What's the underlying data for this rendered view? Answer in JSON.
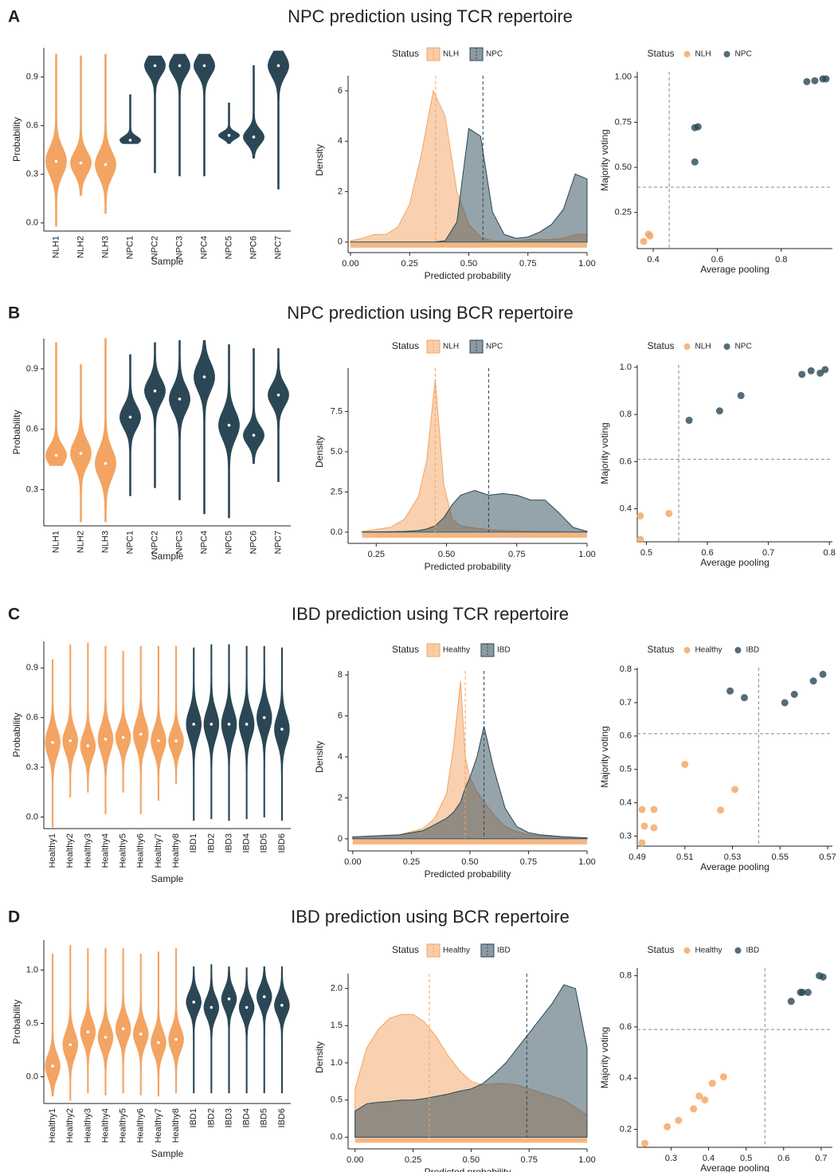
{
  "panels": [
    {
      "label": "A",
      "title": "NPC prediction using TCR repertoire"
    },
    {
      "label": "B",
      "title": "NPC prediction using BCR repertoire"
    },
    {
      "label": "C",
      "title": "IBD prediction using TCR repertoire"
    },
    {
      "label": "D",
      "title": "IBD prediction using BCR repertoire"
    }
  ],
  "chart_data": [
    {
      "type": "violin",
      "xlabel": "Sample",
      "ylabel": "Probability",
      "categories": [
        "NLH1",
        "NLH2",
        "NLH3",
        "NPC1",
        "NPC2",
        "NPC3",
        "NPC4",
        "NPC5",
        "NPC6",
        "NPC7"
      ],
      "colors": [
        "#f3a462",
        "#f3a462",
        "#f3a462",
        "#2b4756",
        "#2b4756",
        "#2b4756",
        "#2b4756",
        "#2b4756",
        "#2b4756",
        "#2b4756"
      ],
      "mins": [
        -0.02,
        0.17,
        0.06,
        0.49,
        0.31,
        0.29,
        0.29,
        0.49,
        0.4,
        0.21
      ],
      "medians": [
        0.38,
        0.37,
        0.36,
        0.51,
        0.97,
        0.97,
        0.97,
        0.54,
        0.53,
        0.97
      ],
      "maxs": [
        1.04,
        1.03,
        1.04,
        0.79,
        1.03,
        1.04,
        1.04,
        0.74,
        0.97,
        1.06
      ],
      "ylim": [
        -0.05,
        1.08
      ],
      "yticks": [
        {
          "value": 0,
          "label": "0.0"
        },
        0.3,
        0.6,
        0.9
      ]
    },
    {
      "type": "density",
      "xlabel": "Predicted probability",
      "ylabel": "Density",
      "legend_title": "Status",
      "x": [
        0,
        0.05,
        0.1,
        0.15,
        0.2,
        0.25,
        0.3,
        0.35,
        0.4,
        0.45,
        0.5,
        0.55,
        0.6,
        0.65,
        0.7,
        0.75,
        0.8,
        0.85,
        0.9,
        0.95,
        1
      ],
      "series": [
        {
          "name": "NLH",
          "color": "#f3a462",
          "mean": 0.36,
          "values": [
            0.05,
            0.15,
            0.3,
            0.3,
            0.6,
            1.5,
            3.5,
            6,
            5,
            2,
            0.7,
            0.2,
            0.05,
            0.05,
            0.05,
            0.1,
            0.1,
            0.1,
            0.15,
            0.3,
            0.3
          ]
        },
        {
          "name": "NPC",
          "color": "#2b4756",
          "mean": 0.56,
          "values": [
            0,
            0,
            0,
            0,
            0,
            0,
            0,
            0,
            0.05,
            0.8,
            4.5,
            4.2,
            1.2,
            0.3,
            0.15,
            0.2,
            0.4,
            0.7,
            1.3,
            2.7,
            2.5
          ]
        }
      ],
      "xlim": [
        -0.01,
        1
      ],
      "xticks": [
        {
          "value": 0,
          "label": "0.00"
        },
        {
          "value": 0.25,
          "label": "0.25"
        },
        {
          "value": 0.5,
          "label": "0.50"
        },
        {
          "value": 0.75,
          "label": "0.75"
        },
        {
          "value": 1,
          "label": "1.00"
        }
      ],
      "ylim": [
        -0.1,
        6.6
      ],
      "yticks": [
        0,
        2,
        4,
        6
      ]
    },
    {
      "type": "scatter",
      "xlabel": "Average pooling",
      "ylabel": "Majority voting",
      "legend_title": "Status",
      "series": [
        {
          "name": "NLH",
          "color": "#f3a462",
          "x": [
            0.37,
            0.385,
            0.39
          ],
          "y": [
            0.09,
            0.13,
            0.12
          ]
        },
        {
          "name": "NPC",
          "color": "#2b4756",
          "x": [
            0.53,
            0.53,
            0.54,
            0.88,
            0.905,
            0.93,
            0.94
          ],
          "y": [
            0.53,
            0.72,
            0.725,
            0.975,
            0.98,
            0.99,
            0.99
          ]
        }
      ],
      "vline": 0.45,
      "hline": 0.39,
      "xlim": [
        0.35,
        0.96
      ],
      "xticks": [
        0.4,
        0.6,
        0.8
      ],
      "ylim": [
        0.05,
        1.03
      ],
      "yticks": [
        0.25,
        {
          "value": 0.5,
          "label": "0.50"
        },
        0.75,
        {
          "value": 1,
          "label": "1.00"
        }
      ]
    },
    {
      "type": "violin",
      "xlabel": "Sample",
      "ylabel": "Probability",
      "categories": [
        "NLH1",
        "NLH2",
        "NLH3",
        "NPC1",
        "NPC2",
        "NPC3",
        "NPC4",
        "NPC5",
        "NPC6",
        "NPC7"
      ],
      "colors": [
        "#f3a462",
        "#f3a462",
        "#f3a462",
        "#2b4756",
        "#2b4756",
        "#2b4756",
        "#2b4756",
        "#2b4756",
        "#2b4756",
        "#2b4756"
      ],
      "mins": [
        0.42,
        0.14,
        0.14,
        0.27,
        0.31,
        0.25,
        0.18,
        0.16,
        0.43,
        0.34
      ],
      "medians": [
        0.47,
        0.48,
        0.43,
        0.66,
        0.79,
        0.75,
        0.86,
        0.62,
        0.57,
        0.77
      ],
      "maxs": [
        1.03,
        0.92,
        1.05,
        0.97,
        1.03,
        1.04,
        1.04,
        1.02,
        1,
        1
      ],
      "ylim": [
        0.12,
        1.05
      ],
      "yticks": [
        0.3,
        0.6,
        0.9
      ]
    },
    {
      "type": "density",
      "xlabel": "Predicted probability",
      "ylabel": "Density",
      "legend_title": "Status",
      "x": [
        0.2,
        0.3,
        0.35,
        0.4,
        0.43,
        0.46,
        0.49,
        0.52,
        0.55,
        0.6,
        0.65,
        0.7,
        0.75,
        0.8,
        0.85,
        0.9,
        0.95,
        1
      ],
      "series": [
        {
          "name": "NLH",
          "color": "#f3a462",
          "mean": 0.46,
          "values": [
            0.05,
            0.3,
            0.8,
            2.2,
            4.5,
            9.5,
            3,
            0.8,
            0.4,
            0.25,
            0.15,
            0.1,
            0.08,
            0.05,
            0.05,
            0.04,
            0.03,
            0.02
          ]
        },
        {
          "name": "NPC",
          "color": "#2b4756",
          "mean": 0.65,
          "values": [
            0.02,
            0.03,
            0.05,
            0.1,
            0.2,
            0.4,
            0.9,
            1.7,
            2.3,
            2.6,
            2.3,
            2.4,
            2.3,
            2,
            2,
            1.2,
            0.3,
            0.05
          ]
        }
      ],
      "xlim": [
        0.15,
        1
      ],
      "xticks": [
        {
          "value": 0.25,
          "label": "0.25"
        },
        {
          "value": 0.5,
          "label": "0.50"
        },
        {
          "value": 0.75,
          "label": "0.75"
        },
        {
          "value": 1,
          "label": "1.00"
        }
      ],
      "ylim": [
        -0.2,
        10.2
      ],
      "yticks": [
        {
          "value": 0,
          "label": "0.0"
        },
        2.5,
        {
          "value": 5,
          "label": "5.0"
        },
        7.5
      ]
    },
    {
      "type": "scatter",
      "xlabel": "Average pooling",
      "ylabel": "Majority voting",
      "legend_title": "Status",
      "series": [
        {
          "name": "NLH",
          "color": "#f3a462",
          "x": [
            0.49,
            0.49,
            0.537
          ],
          "y": [
            0.37,
            0.27,
            0.38
          ]
        },
        {
          "name": "NPC",
          "color": "#2b4756",
          "x": [
            0.57,
            0.62,
            0.655,
            0.755,
            0.77,
            0.785,
            0.793
          ],
          "y": [
            0.775,
            0.815,
            0.88,
            0.97,
            0.985,
            0.975,
            0.99
          ]
        }
      ],
      "vline": 0.553,
      "hline": 0.61,
      "xlim": [
        0.485,
        0.805
      ],
      "xticks": [
        0.5,
        0.6,
        0.7,
        0.8
      ],
      "ylim": [
        0.26,
        1.01
      ],
      "yticks": [
        0.4,
        0.6,
        0.8,
        {
          "value": 1,
          "label": "1.0"
        }
      ]
    },
    {
      "type": "violin",
      "xlabel": "Sample",
      "ylabel": "Probability",
      "categories": [
        "Healthy1",
        "Healthy2",
        "Healthy3",
        "Healthy4",
        "Healthy5",
        "Healthy6",
        "Healthy7",
        "Healthy8",
        "IBD1",
        "IBD2",
        "IBD3",
        "IBD4",
        "IBD5",
        "IBD6"
      ],
      "colors": [
        "#f3a462",
        "#f3a462",
        "#f3a462",
        "#f3a462",
        "#f3a462",
        "#f3a462",
        "#f3a462",
        "#f3a462",
        "#2b4756",
        "#2b4756",
        "#2b4756",
        "#2b4756",
        "#2b4756",
        "#2b4756"
      ],
      "mins": [
        -0.06,
        0.12,
        0.15,
        0.02,
        0.15,
        0.02,
        0.1,
        0.2,
        -0.02,
        -0.01,
        -0.02,
        -0.01,
        0,
        -0.02
      ],
      "medians": [
        0.45,
        0.46,
        0.43,
        0.47,
        0.48,
        0.5,
        0.46,
        0.46,
        0.56,
        0.56,
        0.56,
        0.56,
        0.6,
        0.53
      ],
      "maxs": [
        0.95,
        1.04,
        1.05,
        1.03,
        1,
        1.03,
        1.03,
        1.03,
        1.02,
        1.04,
        1.04,
        1.03,
        1.03,
        1.02
      ],
      "ylim": [
        -0.07,
        1.06
      ],
      "yticks": [
        {
          "value": 0,
          "label": "0.0"
        },
        0.3,
        0.6,
        0.9
      ]
    },
    {
      "type": "density",
      "xlabel": "Predicted probability",
      "ylabel": "Density",
      "legend_title": "Status",
      "x": [
        0,
        0.2,
        0.3,
        0.35,
        0.4,
        0.43,
        0.46,
        0.48,
        0.5,
        0.53,
        0.56,
        0.6,
        0.65,
        0.7,
        0.75,
        0.8,
        0.9,
        1
      ],
      "series": [
        {
          "name": "Healthy",
          "color": "#f3a462",
          "mean": 0.48,
          "values": [
            0.1,
            0.2,
            0.5,
            1,
            2.2,
            4.5,
            7.7,
            4,
            3,
            2.3,
            1.8,
            1.2,
            0.6,
            0.35,
            0.2,
            0.15,
            0.1,
            0.05
          ]
        },
        {
          "name": "IBD",
          "color": "#2b4756",
          "mean": 0.56,
          "values": [
            0.1,
            0.2,
            0.4,
            0.7,
            1,
            1.3,
            1.8,
            2.5,
            3,
            4,
            5.5,
            3.5,
            1.5,
            0.6,
            0.3,
            0.2,
            0.1,
            0.05
          ]
        }
      ],
      "xlim": [
        -0.02,
        1
      ],
      "xticks": [
        {
          "value": 0,
          "label": "0.00"
        },
        {
          "value": 0.25,
          "label": "0.25"
        },
        {
          "value": 0.5,
          "label": "0.50"
        },
        {
          "value": 0.75,
          "label": "0.75"
        },
        {
          "value": 1,
          "label": "1.00"
        }
      ],
      "ylim": [
        -0.2,
        8.2
      ],
      "yticks": [
        0,
        2,
        4,
        6,
        8
      ]
    },
    {
      "type": "scatter",
      "xlabel": "Average pooling",
      "ylabel": "Majority voting",
      "legend_title": "Status",
      "series": [
        {
          "name": "Healthy",
          "color": "#f3a462",
          "x": [
            0.492,
            0.492,
            0.493,
            0.497,
            0.497,
            0.51,
            0.525,
            0.531
          ],
          "y": [
            0.38,
            0.28,
            0.33,
            0.38,
            0.325,
            0.515,
            0.378,
            0.44
          ]
        },
        {
          "name": "IBD",
          "color": "#2b4756",
          "x": [
            0.529,
            0.535,
            0.552,
            0.556,
            0.564,
            0.568
          ],
          "y": [
            0.735,
            0.715,
            0.7,
            0.725,
            0.765,
            0.785
          ]
        }
      ],
      "vline": 0.541,
      "hline": 0.607,
      "xlim": [
        0.49,
        0.572
      ],
      "xticks": [
        0.49,
        0.51,
        0.53,
        0.55,
        0.57
      ],
      "ylim": [
        0.27,
        0.805
      ],
      "yticks": [
        0.3,
        0.4,
        0.5,
        0.6,
        0.7,
        0.8
      ]
    },
    {
      "type": "violin",
      "xlabel": "Sample",
      "ylabel": "Probability",
      "categories": [
        "Healthy1",
        "Healthy2",
        "Healthy3",
        "Healthy4",
        "Healthy5",
        "Healthy6",
        "Healthy7",
        "Healthy8",
        "IBD1",
        "IBD2",
        "IBD3",
        "IBD4",
        "IBD5",
        "IBD6"
      ],
      "colors": [
        "#f3a462",
        "#f3a462",
        "#f3a462",
        "#f3a462",
        "#f3a462",
        "#f3a462",
        "#f3a462",
        "#f3a462",
        "#2b4756",
        "#2b4756",
        "#2b4756",
        "#2b4756",
        "#2b4756",
        "#2b4756"
      ],
      "mins": [
        -0.18,
        -0.22,
        -0.15,
        -0.17,
        -0.15,
        -0.17,
        -0.18,
        -0.15,
        -0.15,
        -0.15,
        -0.15,
        -0.15,
        -0.15,
        -0.15
      ],
      "medians": [
        0.1,
        0.3,
        0.42,
        0.37,
        0.45,
        0.4,
        0.32,
        0.35,
        0.7,
        0.65,
        0.73,
        0.65,
        0.75,
        0.67
      ],
      "maxs": [
        1.15,
        1.23,
        1.2,
        1.2,
        1.2,
        1.15,
        1.17,
        1.2,
        1.03,
        1.05,
        1.03,
        1.02,
        1.03,
        1.03
      ],
      "ylim": [
        -0.25,
        1.28
      ],
      "yticks": [
        {
          "value": 0,
          "label": "0.0"
        },
        0.5,
        {
          "value": 1,
          "label": "1.0"
        }
      ]
    },
    {
      "type": "density",
      "xlabel": "Predicted probability",
      "ylabel": "Density",
      "legend_title": "Status",
      "x": [
        0,
        0.05,
        0.1,
        0.15,
        0.2,
        0.25,
        0.3,
        0.35,
        0.4,
        0.45,
        0.5,
        0.55,
        0.6,
        0.65,
        0.7,
        0.75,
        0.8,
        0.85,
        0.9,
        0.95,
        1
      ],
      "series": [
        {
          "name": "Healthy",
          "color": "#f3a462",
          "mean": 0.32,
          "values": [
            0.65,
            1.2,
            1.45,
            1.6,
            1.65,
            1.65,
            1.55,
            1.35,
            1.1,
            0.9,
            0.75,
            0.7,
            0.72,
            0.72,
            0.7,
            0.65,
            0.6,
            0.55,
            0.5,
            0.4,
            0.3
          ]
        },
        {
          "name": "IBD",
          "color": "#2b4756",
          "mean": 0.74,
          "values": [
            0.35,
            0.45,
            0.47,
            0.48,
            0.5,
            0.5,
            0.52,
            0.55,
            0.58,
            0.62,
            0.65,
            0.72,
            0.85,
            1,
            1.2,
            1.4,
            1.6,
            1.8,
            2.05,
            2,
            1.2
          ]
        }
      ],
      "xlim": [
        -0.03,
        1
      ],
      "xticks": [
        {
          "value": 0,
          "label": "0.00"
        },
        {
          "value": 0.25,
          "label": "0.25"
        },
        {
          "value": 0.5,
          "label": "0.50"
        },
        {
          "value": 0.75,
          "label": "0.75"
        },
        {
          "value": 1,
          "label": "1.00"
        }
      ],
      "ylim": [
        -0.05,
        2.2
      ],
      "yticks": [
        {
          "value": 0,
          "label": "0.0"
        },
        0.5,
        {
          "value": 1,
          "label": "1.0"
        },
        1.5,
        {
          "value": 2,
          "label": "2.0"
        }
      ]
    },
    {
      "type": "scatter",
      "xlabel": "Average pooling",
      "ylabel": "Majority voting",
      "legend_title": "Status",
      "series": [
        {
          "name": "Healthy",
          "color": "#f3a462",
          "x": [
            0.23,
            0.29,
            0.32,
            0.36,
            0.375,
            0.39,
            0.41,
            0.44
          ],
          "y": [
            0.145,
            0.21,
            0.235,
            0.28,
            0.33,
            0.315,
            0.38,
            0.405
          ]
        },
        {
          "name": "IBD",
          "color": "#2b4756",
          "x": [
            0.62,
            0.645,
            0.65,
            0.665,
            0.695,
            0.705
          ],
          "y": [
            0.7,
            0.735,
            0.735,
            0.735,
            0.8,
            0.795
          ]
        }
      ],
      "vline": 0.55,
      "hline": 0.59,
      "xlim": [
        0.21,
        0.73
      ],
      "xticks": [
        0.3,
        0.4,
        0.5,
        0.6,
        0.7
      ],
      "ylim": [
        0.13,
        0.83
      ],
      "yticks": [
        0.2,
        0.4,
        0.6,
        0.8
      ]
    }
  ]
}
